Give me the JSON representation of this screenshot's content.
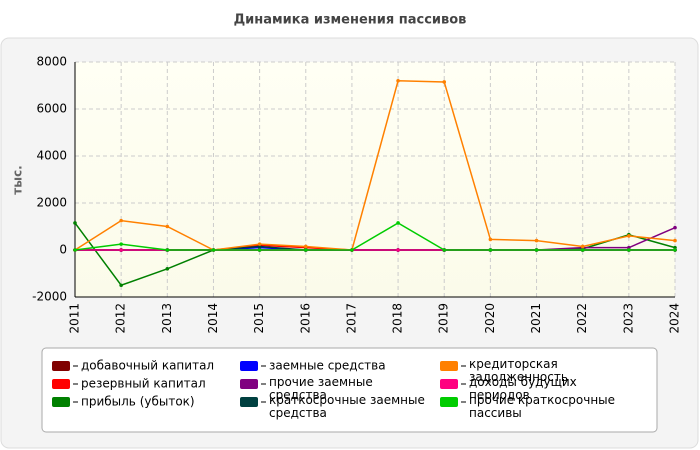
{
  "chart_data": {
    "type": "line",
    "title": "Динамика изменения пассивов",
    "y_label": "тыс.",
    "x": [
      "2011",
      "2012",
      "2013",
      "2014",
      "2015",
      "2016",
      "2017",
      "2018",
      "2019",
      "2020",
      "2021",
      "2022",
      "2023",
      "2024"
    ],
    "ylim": [
      -2000,
      8000
    ],
    "yticks": [
      -2000,
      0,
      2000,
      4000,
      6000,
      8000
    ],
    "grid": true,
    "series": [
      {
        "name": "добавочный капитал",
        "color": "#800000",
        "values": [
          0,
          0,
          0,
          0,
          0,
          0,
          0,
          0,
          0,
          0,
          0,
          0,
          0,
          0
        ]
      },
      {
        "name": "резервный капитал",
        "color": "#ff0000",
        "values": [
          0,
          0,
          0,
          0,
          200,
          100,
          0,
          0,
          0,
          0,
          0,
          0,
          0,
          0
        ]
      },
      {
        "name": "прибыль (убыток)",
        "color": "#008000",
        "values": [
          1150,
          -1500,
          -800,
          0,
          0,
          0,
          0,
          0,
          0,
          0,
          0,
          50,
          650,
          100
        ]
      },
      {
        "name": "заемные средства",
        "color": "#0000ff",
        "values": [
          0,
          0,
          0,
          0,
          100,
          0,
          0,
          0,
          0,
          0,
          0,
          0,
          0,
          0
        ]
      },
      {
        "name": "прочие заемные средства",
        "color": "#800080",
        "values": [
          0,
          0,
          0,
          0,
          0,
          0,
          0,
          0,
          0,
          0,
          0,
          100,
          100,
          950
        ]
      },
      {
        "name": "краткосрочные заемные средства",
        "color": "#004040",
        "values": [
          0,
          0,
          0,
          0,
          150,
          0,
          0,
          0,
          0,
          0,
          0,
          0,
          0,
          0
        ]
      },
      {
        "name": "кредиторская задолженность",
        "color": "#ff8000",
        "values": [
          0,
          1250,
          1000,
          0,
          250,
          150,
          0,
          7200,
          7150,
          450,
          400,
          150,
          600,
          400
        ]
      },
      {
        "name": "доходы будущих периодов",
        "color": "#ff0080",
        "values": [
          0,
          0,
          0,
          0,
          0,
          0,
          0,
          0,
          0,
          0,
          0,
          0,
          0,
          0
        ]
      },
      {
        "name": "прочие краткосрочные пассивы",
        "color": "#00cc00",
        "values": [
          0,
          250,
          0,
          0,
          0,
          0,
          0,
          1150,
          0,
          0,
          0,
          0,
          0,
          0
        ]
      }
    ]
  }
}
